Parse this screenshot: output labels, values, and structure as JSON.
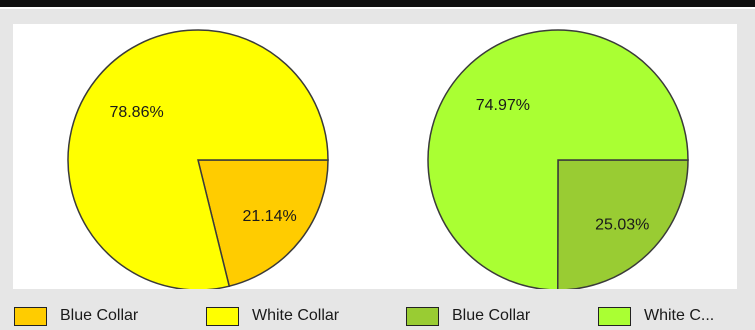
{
  "chart_data": [
    {
      "type": "pie",
      "slices": [
        {
          "label": "Blue Collar",
          "value": 21.14,
          "display": "21.14%",
          "color": "#ffcc00"
        },
        {
          "label": "White Collar",
          "value": 78.86,
          "display": "78.86%",
          "color": "#ffff00"
        }
      ],
      "start": "east",
      "direction": "clockwise"
    },
    {
      "type": "pie",
      "slices": [
        {
          "label": "Blue Collar",
          "value": 25.03,
          "display": "25.03%",
          "color": "#99cc33"
        },
        {
          "label": "White Collar",
          "value": 74.97,
          "display": "74.97%",
          "color": "#aaff33"
        }
      ],
      "start": "east",
      "direction": "clockwise"
    }
  ],
  "legend": {
    "placement": "bottom",
    "items": [
      {
        "label": "Blue Collar",
        "color": "#ffcc00"
      },
      {
        "label": "White Collar",
        "color": "#ffff00"
      },
      {
        "label": "Blue Collar",
        "color": "#99cc33"
      },
      {
        "label": "White C...",
        "color": "#aaff33"
      }
    ]
  }
}
